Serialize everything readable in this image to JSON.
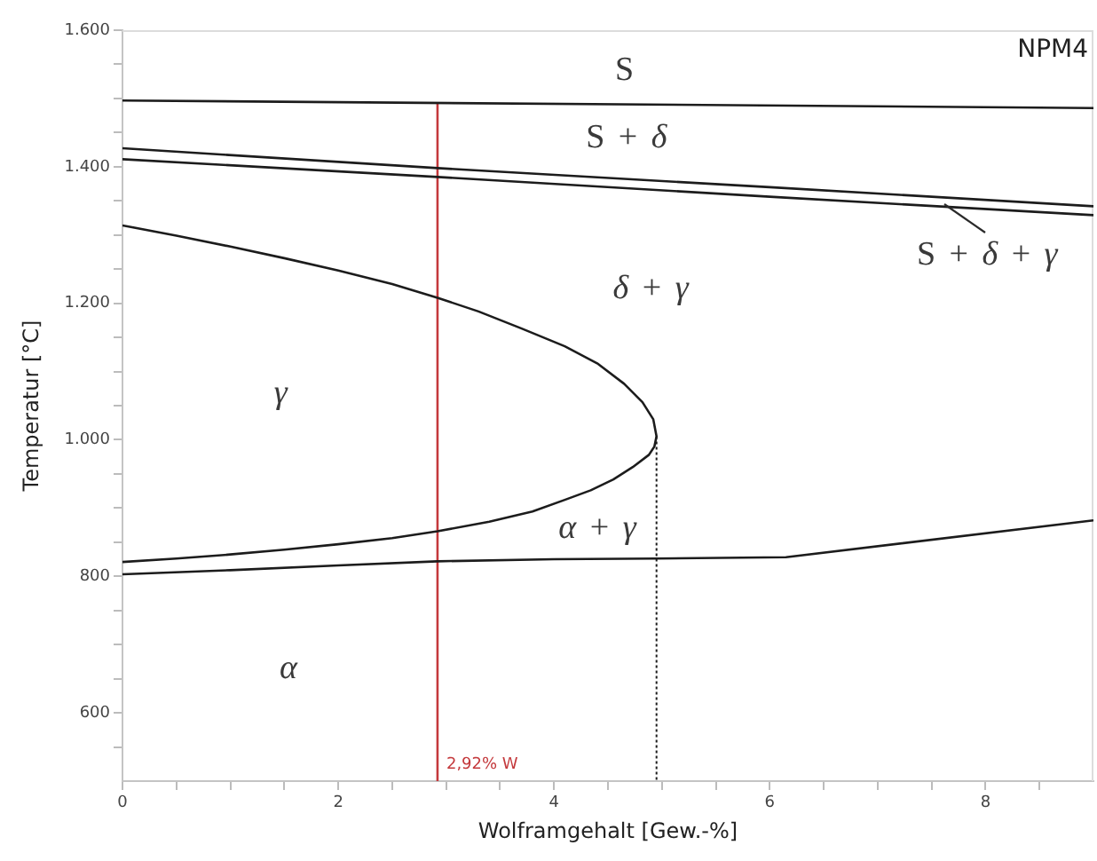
{
  "chart_data": {
    "type": "line",
    "title": "NPM4",
    "xlabel": "Wolframgehalt [Gew.-%]",
    "ylabel": "Temperatur [°C]",
    "xlim": [
      0,
      9
    ],
    "ylim": [
      500,
      1600
    ],
    "xticks": [
      0,
      {
        "value": 0.5,
        "label": null
      },
      {
        "value": 1,
        "label": null
      },
      {
        "value": 1.5,
        "label": null
      },
      2,
      {
        "value": 2.5,
        "label": null
      },
      {
        "value": 3,
        "label": null
      },
      {
        "value": 3.5,
        "label": null
      },
      4,
      {
        "value": 4.5,
        "label": null
      },
      {
        "value": 5,
        "label": null
      },
      {
        "value": 5.5,
        "label": null
      },
      6,
      {
        "value": 6.5,
        "label": null
      },
      {
        "value": 7,
        "label": null
      },
      {
        "value": 7.5,
        "label": null
      },
      8,
      {
        "value": 8.5,
        "label": null
      }
    ],
    "yticks": [
      {
        "value": 550,
        "label": null
      },
      600,
      {
        "value": 650,
        "label": null
      },
      {
        "value": 700,
        "label": null
      },
      {
        "value": 750,
        "label": null
      },
      800,
      {
        "value": 850,
        "label": null
      },
      {
        "value": 900,
        "label": null
      },
      {
        "value": 950,
        "label": null
      },
      {
        "value": 1000,
        "label": "1.000"
      },
      {
        "value": 1050,
        "label": null
      },
      {
        "value": 1100,
        "label": null
      },
      {
        "value": 1150,
        "label": null
      },
      {
        "value": 1200,
        "label": "1.200"
      },
      {
        "value": 1250,
        "label": null
      },
      {
        "value": 1300,
        "label": null
      },
      {
        "value": 1350,
        "label": null
      },
      {
        "value": 1400,
        "label": "1.400"
      },
      {
        "value": 1450,
        "label": null
      },
      {
        "value": 1500,
        "label": null
      },
      {
        "value": 1550,
        "label": null
      },
      {
        "value": 1600,
        "label": "1.600"
      }
    ],
    "series": [
      {
        "color": "#1c1c1c",
        "x": [
          0,
          9
        ],
        "values": [
          1497,
          1486
        ]
      },
      {
        "color": "#1c1c1c",
        "x": [
          0,
          2.92,
          6,
          9
        ],
        "values": [
          1427,
          1398,
          1370,
          1342
        ]
      },
      {
        "color": "#1c1c1c",
        "x": [
          0,
          2.92,
          6,
          9
        ],
        "values": [
          1411,
          1385,
          1356,
          1329
        ]
      },
      {
        "color": "#1c1c1c",
        "x": [
          0,
          0.5,
          1,
          1.5,
          2,
          2.5,
          2.92,
          3.3,
          3.7,
          4.1,
          4.4,
          4.65,
          4.82,
          4.92,
          4.95,
          4.93,
          4.88,
          4.73,
          4.55,
          4.34,
          4.1,
          3.8,
          3.4,
          2.92,
          2.5,
          2,
          1.5,
          1,
          0.5,
          0
        ],
        "values": [
          1314,
          1299,
          1283,
          1266,
          1248,
          1228,
          1208,
          1188,
          1163,
          1137,
          1112,
          1082,
          1055,
          1030,
          1005,
          990,
          978,
          960,
          942,
          926,
          912,
          895,
          880,
          866,
          856,
          847,
          839,
          832,
          826,
          821
        ]
      },
      {
        "color": "#1c1c1c",
        "x": [
          0,
          1,
          2,
          2.92,
          4,
          4.95,
          6.15,
          9
        ],
        "values": [
          803,
          809,
          816,
          822,
          825,
          826,
          828,
          882
        ]
      },
      {
        "color": "#1c1c1c",
        "x": [
          4.95,
          4.95
        ],
        "values": [
          1005,
          500
        ],
        "line_style": "dotted"
      },
      {
        "name": "2,92% W",
        "color": "#c4393c",
        "x": [
          2.92,
          2.92
        ],
        "values": [
          500,
          1493
        ]
      }
    ],
    "annotations": [
      "S",
      "S + δ",
      {
        "text": "S + δ + γ",
        "x": 7.62,
        "y": 1344
      },
      "δ + γ",
      "γ",
      "α + γ",
      "α"
    ]
  }
}
